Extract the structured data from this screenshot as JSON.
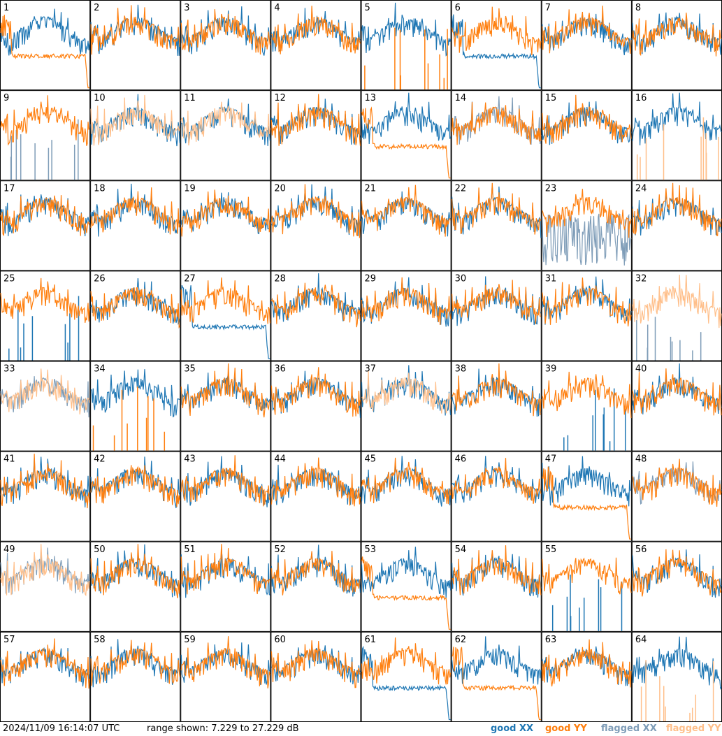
{
  "colors": {
    "good_xx": "#1f77b4",
    "good_yy": "#ff7f0e",
    "flagged_xx": "#7f9db8",
    "flagged_yy": "#ffbf8a"
  },
  "footer": {
    "timestamp": "2024/11/09 16:14:07 UTC",
    "range_text": "range shown: 7.229 to 27.229 dB",
    "legend": {
      "good_xx": "good XX",
      "good_yy": "good YY",
      "flagged_xx": "flagged XX",
      "flagged_yy": "flagged YY"
    }
  },
  "chart_data": {
    "type": "line",
    "layout": "small-multiples 8x8",
    "y_range_db": [
      7.229,
      27.229
    ],
    "tiles": [
      {
        "id": "1",
        "label": "1",
        "xx": "good",
        "yy": "good",
        "xx_shape": "normal",
        "yy_shape": "droop"
      },
      {
        "id": "2",
        "label": "2",
        "xx": "good",
        "yy": "good",
        "xx_shape": "normal",
        "yy_shape": "normal"
      },
      {
        "id": "3",
        "label": "3",
        "xx": "good",
        "yy": "good",
        "xx_shape": "normal",
        "yy_shape": "normal"
      },
      {
        "id": "4",
        "label": "4",
        "xx": "good",
        "yy": "good",
        "xx_shape": "normal",
        "yy_shape": "normal"
      },
      {
        "id": "5",
        "label": "5",
        "xx": "good",
        "yy": "good",
        "xx_shape": "normal",
        "yy_shape": "spikes"
      },
      {
        "id": "6",
        "label": "6",
        "xx": "good",
        "yy": "good",
        "xx_shape": "droop",
        "yy_shape": "normal"
      },
      {
        "id": "7",
        "label": "7",
        "xx": "good",
        "yy": "good",
        "xx_shape": "normal",
        "yy_shape": "normal"
      },
      {
        "id": "8",
        "label": "8",
        "xx": "good",
        "yy": "good",
        "xx_shape": "normal",
        "yy_shape": "normal"
      },
      {
        "id": "9",
        "label": "9",
        "xx": "flagged",
        "yy": "good",
        "xx_shape": "spikes",
        "yy_shape": "normal"
      },
      {
        "id": "10",
        "label": "10",
        "xx": "good",
        "yy": "flagged",
        "xx_shape": "normal",
        "yy_shape": "normal"
      },
      {
        "id": "11",
        "label": "11",
        "xx": "good",
        "yy": "flagged",
        "xx_shape": "normal",
        "yy_shape": "normal"
      },
      {
        "id": "12",
        "label": "12",
        "xx": "good",
        "yy": "good",
        "xx_shape": "normal",
        "yy_shape": "normal"
      },
      {
        "id": "13",
        "label": "13",
        "xx": "good",
        "yy": "good",
        "xx_shape": "normal",
        "yy_shape": "droop"
      },
      {
        "id": "14",
        "label": "14",
        "xx": "flagged",
        "yy": "good",
        "xx_shape": "normal",
        "yy_shape": "normal"
      },
      {
        "id": "15",
        "label": "15",
        "xx": "good",
        "yy": "good",
        "xx_shape": "normal",
        "yy_shape": "normal"
      },
      {
        "id": "16",
        "label": "16",
        "xx": "good",
        "yy": "flagged",
        "xx_shape": "normal",
        "yy_shape": "spikes"
      },
      {
        "id": "17",
        "label": "17",
        "xx": "good",
        "yy": "good",
        "xx_shape": "normal",
        "yy_shape": "normal"
      },
      {
        "id": "18",
        "label": "18",
        "xx": "good",
        "yy": "good",
        "xx_shape": "normal",
        "yy_shape": "normal"
      },
      {
        "id": "19",
        "label": "19",
        "xx": "good",
        "yy": "good",
        "xx_shape": "normal",
        "yy_shape": "normal"
      },
      {
        "id": "20",
        "label": "20",
        "xx": "good",
        "yy": "good",
        "xx_shape": "normal",
        "yy_shape": "normal"
      },
      {
        "id": "21",
        "label": "21",
        "xx": "good",
        "yy": "good",
        "xx_shape": "normal",
        "yy_shape": "normal"
      },
      {
        "id": "22",
        "label": "22",
        "xx": "good",
        "yy": "good",
        "xx_shape": "normal",
        "yy_shape": "normal"
      },
      {
        "id": "23",
        "label": "23",
        "xx": "flagged",
        "yy": "good",
        "xx_shape": "noisy",
        "yy_shape": "normal"
      },
      {
        "id": "24",
        "label": "24",
        "xx": "good",
        "yy": "good",
        "xx_shape": "normal",
        "yy_shape": "normal"
      },
      {
        "id": "25",
        "label": "25",
        "xx": "good",
        "yy": "good",
        "xx_shape": "spikes",
        "yy_shape": "normal"
      },
      {
        "id": "26",
        "label": "26",
        "xx": "good",
        "yy": "good",
        "xx_shape": "normal",
        "yy_shape": "normal"
      },
      {
        "id": "27",
        "label": "27",
        "xx": "good",
        "yy": "good",
        "xx_shape": "droop",
        "yy_shape": "normal"
      },
      {
        "id": "28",
        "label": "28",
        "xx": "good",
        "yy": "good",
        "xx_shape": "normal",
        "yy_shape": "normal"
      },
      {
        "id": "29",
        "label": "29",
        "xx": "good",
        "yy": "good",
        "xx_shape": "normal",
        "yy_shape": "normal"
      },
      {
        "id": "30",
        "label": "30",
        "xx": "good",
        "yy": "good",
        "xx_shape": "normal",
        "yy_shape": "normal"
      },
      {
        "id": "31",
        "label": "31",
        "xx": "good",
        "yy": "good",
        "xx_shape": "normal",
        "yy_shape": "normal"
      },
      {
        "id": "32",
        "label": "32",
        "xx": "flagged",
        "yy": "flagged",
        "xx_shape": "spikes",
        "yy_shape": "normal"
      },
      {
        "id": "33",
        "label": "33",
        "xx": "flagged",
        "yy": "flagged",
        "xx_shape": "normal",
        "yy_shape": "normal"
      },
      {
        "id": "34",
        "label": "34",
        "xx": "good",
        "yy": "good",
        "xx_shape": "normal",
        "yy_shape": "spikes"
      },
      {
        "id": "35",
        "label": "35",
        "xx": "good",
        "yy": "good",
        "xx_shape": "normal",
        "yy_shape": "normal"
      },
      {
        "id": "36",
        "label": "36",
        "xx": "good",
        "yy": "good",
        "xx_shape": "normal",
        "yy_shape": "normal"
      },
      {
        "id": "37",
        "label": "37",
        "xx": "good",
        "yy": "flagged",
        "xx_shape": "normal",
        "yy_shape": "normal"
      },
      {
        "id": "38",
        "label": "38",
        "xx": "good",
        "yy": "good",
        "xx_shape": "normal",
        "yy_shape": "normal"
      },
      {
        "id": "39",
        "label": "39",
        "xx": "good",
        "yy": "good",
        "xx_shape": "spikes",
        "yy_shape": "normal"
      },
      {
        "id": "40",
        "label": "40",
        "xx": "good",
        "yy": "good",
        "xx_shape": "normal",
        "yy_shape": "normal"
      },
      {
        "id": "41",
        "label": "41",
        "xx": "good",
        "yy": "good",
        "xx_shape": "normal",
        "yy_shape": "normal"
      },
      {
        "id": "42",
        "label": "42",
        "xx": "good",
        "yy": "good",
        "xx_shape": "normal",
        "yy_shape": "normal"
      },
      {
        "id": "43",
        "label": "43",
        "xx": "good",
        "yy": "good",
        "xx_shape": "normal",
        "yy_shape": "normal"
      },
      {
        "id": "44",
        "label": "44",
        "xx": "good",
        "yy": "good",
        "xx_shape": "normal",
        "yy_shape": "normal"
      },
      {
        "id": "45",
        "label": "45",
        "xx": "good",
        "yy": "good",
        "xx_shape": "normal",
        "yy_shape": "normal"
      },
      {
        "id": "46",
        "label": "46",
        "xx": "good",
        "yy": "good",
        "xx_shape": "normal",
        "yy_shape": "normal"
      },
      {
        "id": "47",
        "label": "47",
        "xx": "good",
        "yy": "good",
        "xx_shape": "normal",
        "yy_shape": "droop"
      },
      {
        "id": "48",
        "label": "48",
        "xx": "flagged",
        "yy": "good",
        "xx_shape": "normal",
        "yy_shape": "normal"
      },
      {
        "id": "49",
        "label": "49",
        "xx": "flagged",
        "yy": "flagged",
        "xx_shape": "normal",
        "yy_shape": "normal"
      },
      {
        "id": "50",
        "label": "50",
        "xx": "good",
        "yy": "good",
        "xx_shape": "normal",
        "yy_shape": "normal"
      },
      {
        "id": "51",
        "label": "51",
        "xx": "good",
        "yy": "good",
        "xx_shape": "normal",
        "yy_shape": "normal"
      },
      {
        "id": "52",
        "label": "52",
        "xx": "good",
        "yy": "good",
        "xx_shape": "normal",
        "yy_shape": "normal"
      },
      {
        "id": "53",
        "label": "53",
        "xx": "good",
        "yy": "good",
        "xx_shape": "normal",
        "yy_shape": "droop"
      },
      {
        "id": "54",
        "label": "54",
        "xx": "good",
        "yy": "good",
        "xx_shape": "normal",
        "yy_shape": "normal"
      },
      {
        "id": "55",
        "label": "55",
        "xx": "good",
        "yy": "good",
        "xx_shape": "spikes",
        "yy_shape": "normal"
      },
      {
        "id": "56",
        "label": "56",
        "xx": "good",
        "yy": "good",
        "xx_shape": "normal",
        "yy_shape": "normal"
      },
      {
        "id": "57",
        "label": "57",
        "xx": "good",
        "yy": "good",
        "xx_shape": "normal",
        "yy_shape": "normal"
      },
      {
        "id": "58",
        "label": "58",
        "xx": "good",
        "yy": "good",
        "xx_shape": "normal",
        "yy_shape": "normal"
      },
      {
        "id": "59",
        "label": "59",
        "xx": "good",
        "yy": "good",
        "xx_shape": "normal",
        "yy_shape": "normal"
      },
      {
        "id": "60",
        "label": "60",
        "xx": "good",
        "yy": "good",
        "xx_shape": "normal",
        "yy_shape": "normal"
      },
      {
        "id": "61",
        "label": "61",
        "xx": "good",
        "yy": "good",
        "xx_shape": "droop",
        "yy_shape": "normal"
      },
      {
        "id": "62",
        "label": "62",
        "xx": "good",
        "yy": "good",
        "xx_shape": "normal",
        "yy_shape": "droop"
      },
      {
        "id": "63",
        "label": "63",
        "xx": "good",
        "yy": "good",
        "xx_shape": "normal",
        "yy_shape": "normal"
      },
      {
        "id": "64",
        "label": "64",
        "xx": "good",
        "yy": "flagged",
        "xx_shape": "normal",
        "yy_shape": "spikes"
      }
    ]
  }
}
